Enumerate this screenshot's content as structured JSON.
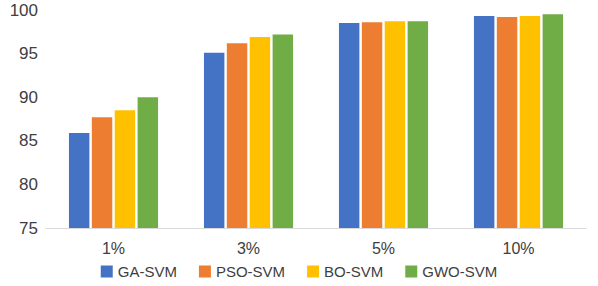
{
  "chart_data": {
    "type": "bar",
    "categories": [
      "1%",
      "3%",
      "5%",
      "10%"
    ],
    "series": [
      {
        "name": "GA-SVM",
        "color": "#4472c4",
        "values": [
          85.9,
          95.1,
          98.5,
          99.3
        ]
      },
      {
        "name": "PSO-SVM",
        "color": "#ed7d31",
        "values": [
          87.7,
          96.2,
          98.6,
          99.2
        ]
      },
      {
        "name": "BO-SVM",
        "color": "#ffc000",
        "values": [
          88.5,
          96.9,
          98.7,
          99.3
        ]
      },
      {
        "name": "GWO-SVM",
        "color": "#70ad47",
        "values": [
          90.0,
          97.2,
          98.7,
          99.5
        ]
      }
    ],
    "ylim": [
      75,
      100
    ],
    "yticks": [
      75,
      80,
      85,
      90,
      95,
      100
    ],
    "grid": false,
    "legend": "bottom"
  }
}
